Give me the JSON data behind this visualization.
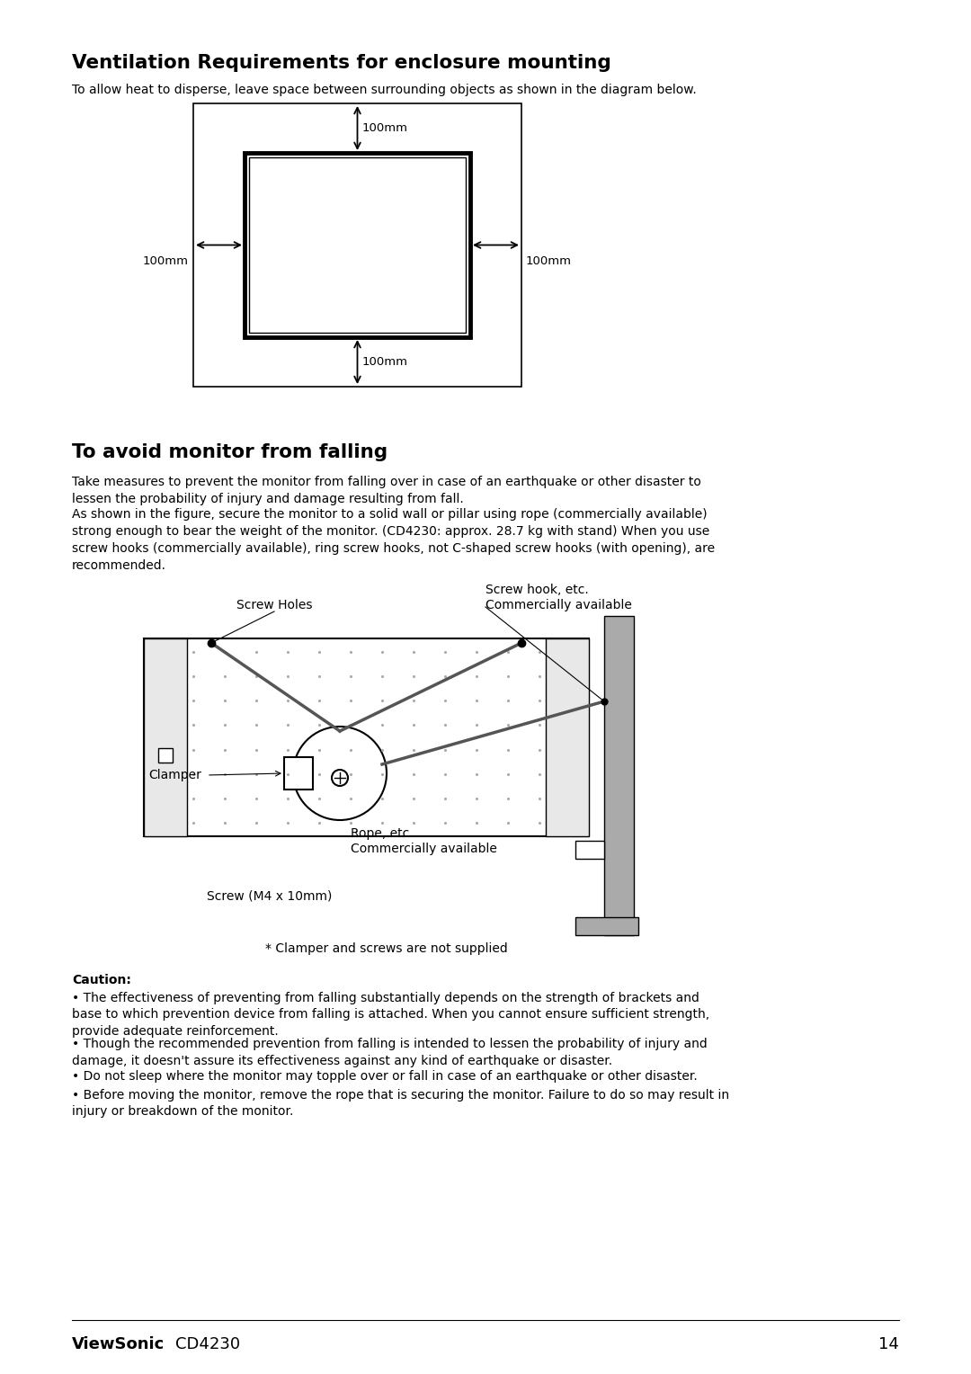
{
  "title1": "Ventilation Requirements for enclosure mounting",
  "subtitle1": "To allow heat to disperse, leave space between surrounding objects as shown in the diagram below.",
  "title2": "To avoid monitor from falling",
  "para1": "Take measures to prevent the monitor from falling over in case of an earthquake or other disaster to\nlessen the probability of injury and damage resulting from fall.",
  "para2": "As shown in the figure, secure the monitor to a solid wall or pillar using rope (commercially available)\nstrong enough to bear the weight of the monitor. (CD4230: approx. 28.7 kg with stand) When you use\nscrew hooks (commercially available), ring screw hooks, not C-shaped screw hooks (with opening), are\nrecommended.",
  "caption": "* Clamper and screws are not supplied",
  "caution_title": "Caution",
  "caution_bullets": [
    "The effectiveness of preventing from falling substantially depends on the strength of brackets and\nbase to which prevention device from falling is attached. When you cannot ensure sufficient strength,\nprovide adequate reinforcement.",
    "Though the recommended prevention from falling is intended to lessen the probability of injury and\ndamage, it doesn't assure its effectiveness against any kind of earthquake or disaster.",
    "Do not sleep where the monitor may topple over or fall in case of an earthquake or other disaster.",
    "Before moving the monitor, remove the rope that is securing the monitor. Failure to do so may result in\ninjury or breakdown of the monitor."
  ],
  "footer_brand": "ViewSonic",
  "footer_model": "  CD4230",
  "footer_page": "14",
  "bg_color": "#ffffff",
  "text_color": "#000000"
}
